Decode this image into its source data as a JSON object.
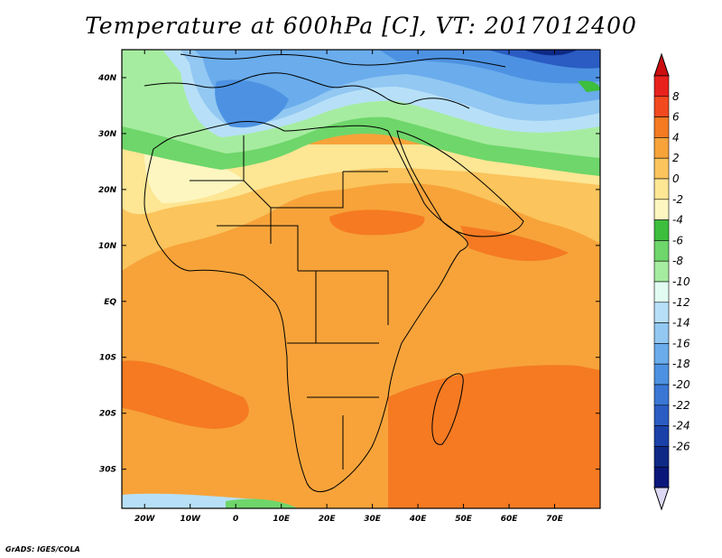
{
  "title": "Temperature at 600hPa [C], VT: 2017012400",
  "credit": "GrADS: IGES/COLA",
  "map": {
    "lon_range": [
      -25,
      80
    ],
    "lat_range": [
      -37,
      45
    ],
    "lon_ticks": [
      "20W",
      "10W",
      "0",
      "10E",
      "20E",
      "30E",
      "40E",
      "50E",
      "60E",
      "70E"
    ],
    "lon_tick_values": [
      -20,
      -10,
      0,
      10,
      20,
      30,
      40,
      50,
      60,
      70
    ],
    "lat_ticks": [
      "40N",
      "30N",
      "20N",
      "10N",
      "EQ",
      "10S",
      "20S",
      "30S"
    ],
    "lat_tick_values": [
      40,
      30,
      20,
      10,
      0,
      -10,
      -20,
      -30
    ]
  },
  "colorbar": {
    "labels": [
      "8",
      "6",
      "4",
      "2",
      "0",
      "-2",
      "-4",
      "-6",
      "-8",
      "-10",
      "-12",
      "-14",
      "-16",
      "-18",
      "-20",
      "-22",
      "-24",
      "-26"
    ],
    "colors": [
      "#e8211c",
      "#f2491f",
      "#f57a22",
      "#f7a33a",
      "#fbc45c",
      "#fde694",
      "#fdf6c0",
      "#3dbe3d",
      "#6ed66a",
      "#a6eca0",
      "#e1fbf3",
      "#b7e0f8",
      "#92c8f2",
      "#6aacec",
      "#4d92e2",
      "#3a77d5",
      "#2a5cc3",
      "#1a41a8",
      "#0e2a86",
      "#0a167a"
    ],
    "over_color": "#cc0e0e",
    "under_color": "#ddd8f3"
  }
}
